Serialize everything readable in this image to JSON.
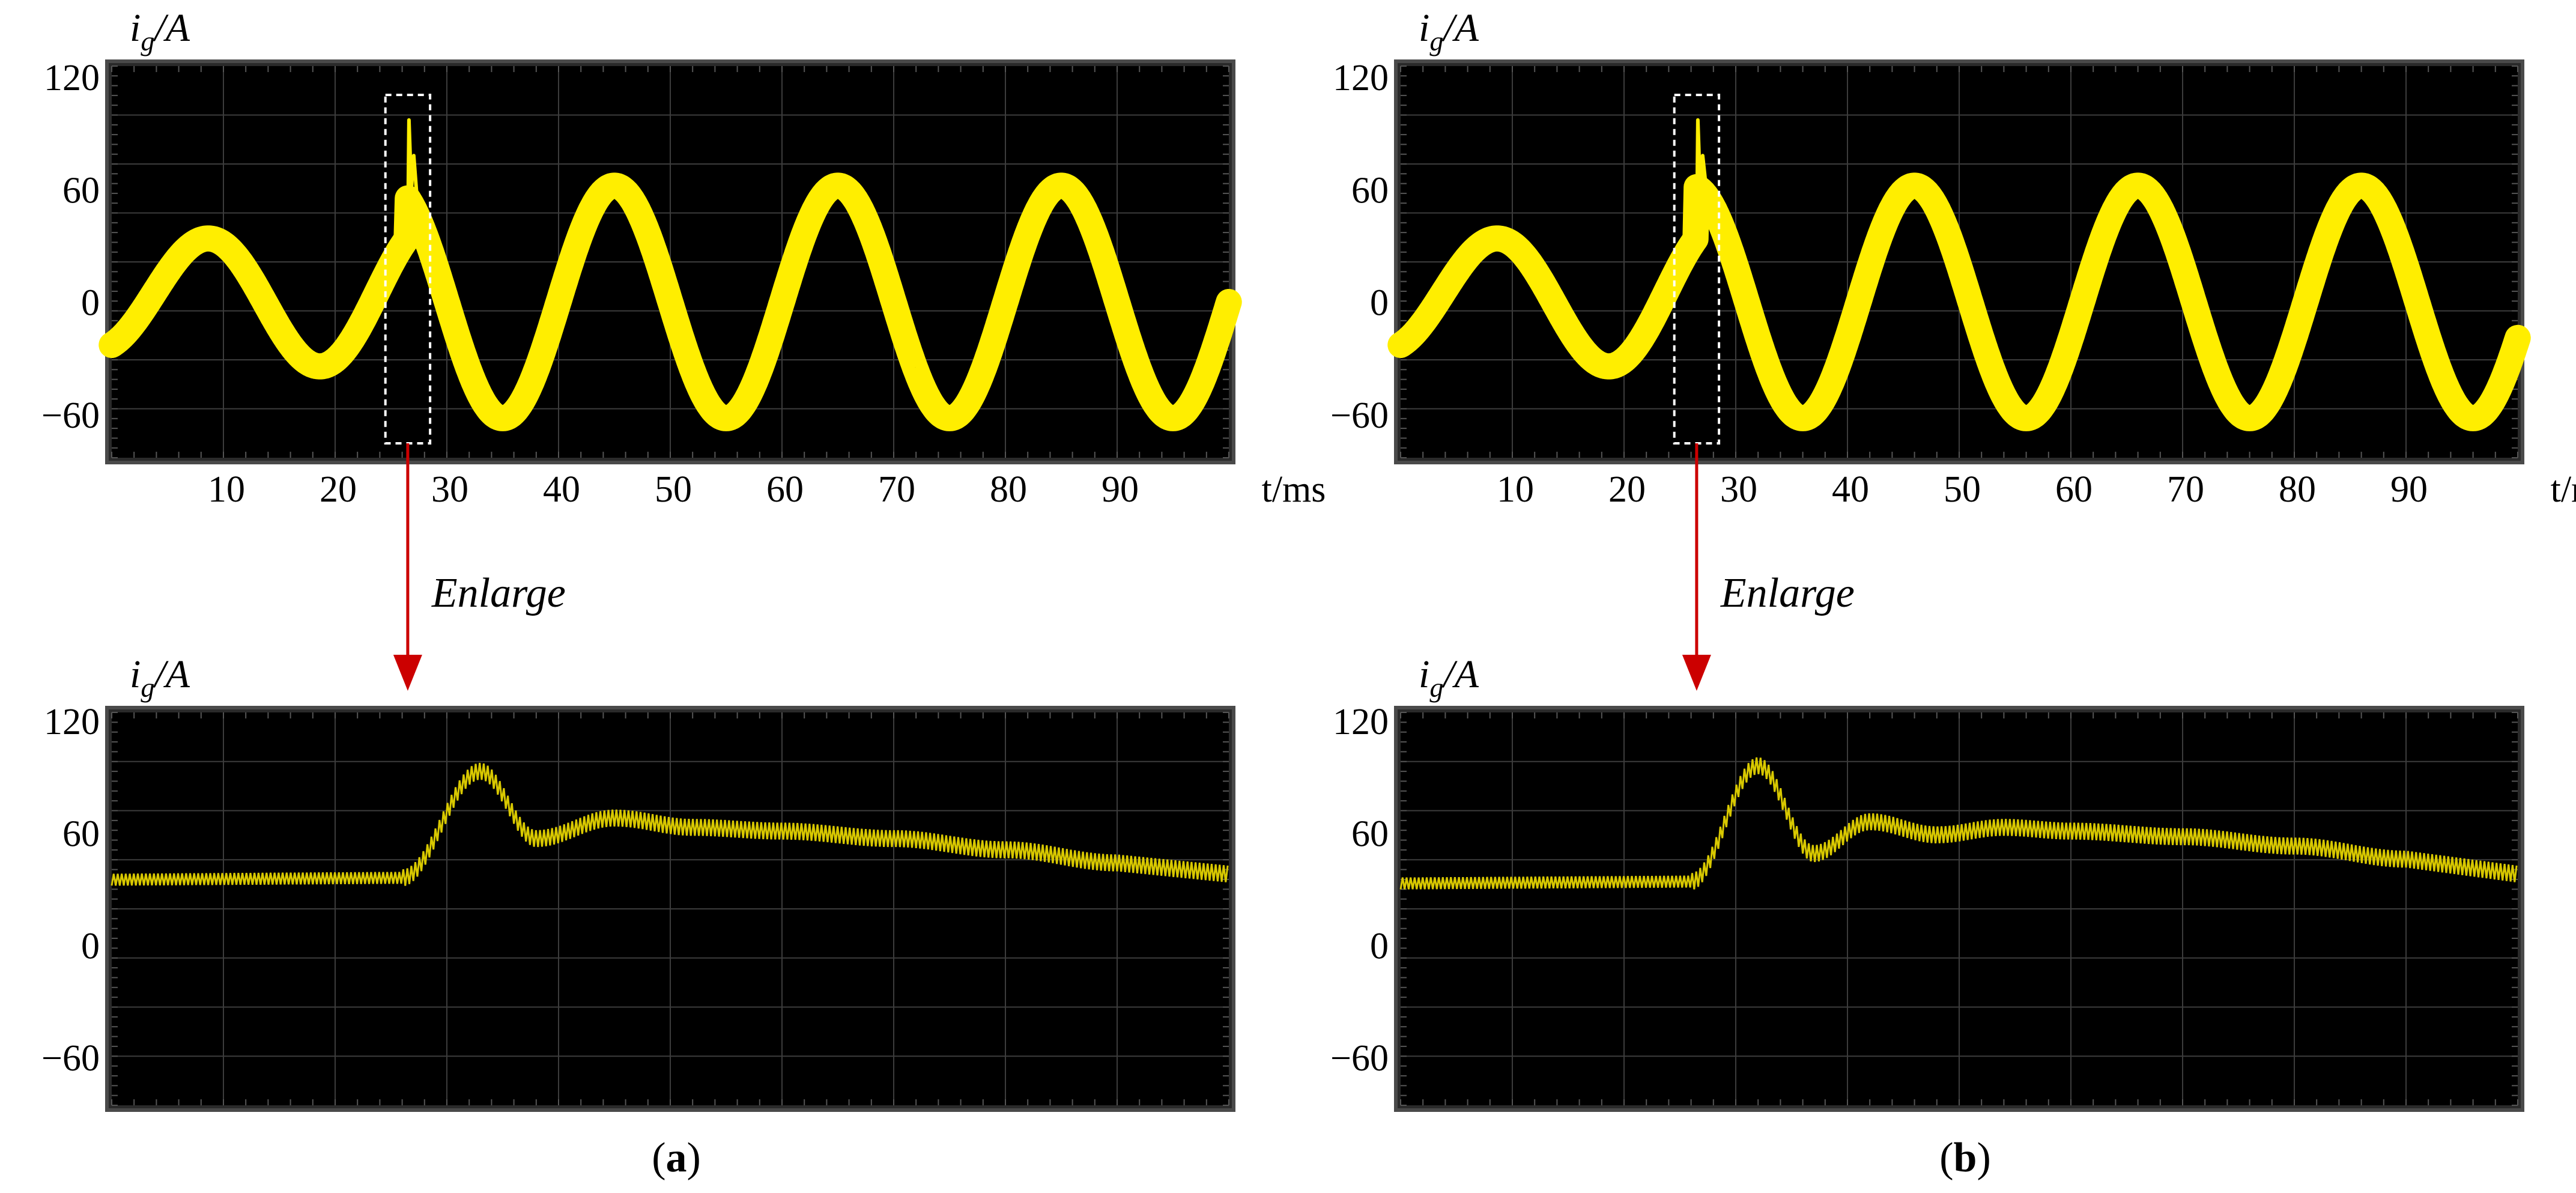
{
  "colors": {
    "screen": "#000000",
    "grid": "#3c3c3c",
    "frame": "#4a4a4a",
    "trace": "#ffee00",
    "trace_zoom": "#d8c800",
    "arrow": "#cc0000",
    "box": "#ffffff"
  },
  "enlarge_label": "Enlarge",
  "chart_data": [
    {
      "id": "a-top",
      "panel": "a",
      "type": "line",
      "ylabel_main": "i",
      "ylabel_sub": "g",
      "ylabel_unit": "/A",
      "xlabel": "t/ms",
      "yticks": [
        "120",
        "60",
        "0",
        "−60"
      ],
      "xticks": [
        "10",
        "20",
        "30",
        "40",
        "50",
        "60",
        "70",
        "80",
        "90"
      ],
      "xlim": [
        0,
        100
      ],
      "ylim": [
        -90,
        125
      ],
      "series": [
        {
          "name": "i_g",
          "transient_ms": 26.5,
          "pre": {
            "amplitude": 28,
            "peak_ms": 8.5,
            "period_ms": 20,
            "drift_per_ms": 0.45
          },
          "post": {
            "amplitude": 62,
            "peak_ms": 45,
            "period_ms": 20
          },
          "spike_peak": 97,
          "band_width": 12
        }
      ],
      "zoom_box_ms": [
        24.5,
        28.5
      ]
    },
    {
      "id": "b-top",
      "panel": "b",
      "type": "line",
      "ylabel_main": "i",
      "ylabel_sub": "g",
      "ylabel_unit": "/A",
      "xlabel": "t/ms",
      "yticks": [
        "120",
        "60",
        "0",
        "−60"
      ],
      "xticks": [
        "10",
        "20",
        "30",
        "40",
        "50",
        "60",
        "70",
        "80",
        "90"
      ],
      "xlim": [
        0,
        100
      ],
      "ylim": [
        -90,
        125
      ],
      "series": [
        {
          "name": "i_g",
          "transient_ms": 26.5,
          "pre": {
            "amplitude": 28,
            "peak_ms": 8.5,
            "period_ms": 20,
            "drift_per_ms": 0.45
          },
          "post": {
            "amplitude": 62,
            "peak_ms": 46,
            "period_ms": 20
          },
          "spike_peak": 97,
          "band_width": 12
        }
      ],
      "zoom_box_ms": [
        24.5,
        28.5
      ]
    },
    {
      "id": "a-bottom",
      "panel": "a",
      "type": "line",
      "ylabel_main": "i",
      "ylabel_sub": "g",
      "ylabel_unit": "/A",
      "yticks": [
        "120",
        "60",
        "0",
        "−60"
      ],
      "xlim": [
        0,
        100
      ],
      "ylim": [
        -90,
        125
      ],
      "series": [
        {
          "name": "i_g (enlarged)",
          "ripple": 4.5,
          "points": [
            [
              0,
              35
            ],
            [
              26,
              36
            ],
            [
              33,
              93
            ],
            [
              38,
              57
            ],
            [
              45,
              68
            ],
            [
              52,
              63
            ],
            [
              60,
              61
            ],
            [
              70,
              57
            ],
            [
              80,
              51
            ],
            [
              90,
              44
            ],
            [
              100,
              38
            ]
          ]
        }
      ]
    },
    {
      "id": "b-bottom",
      "panel": "b",
      "type": "line",
      "ylabel_main": "i",
      "ylabel_sub": "g",
      "ylabel_unit": "/A",
      "yticks": [
        "120",
        "60",
        "0",
        "−60"
      ],
      "xlim": [
        0,
        100
      ],
      "ylim": [
        -90,
        125
      ],
      "series": [
        {
          "name": "i_g (enlarged)",
          "ripple": 4.5,
          "points": [
            [
              0,
              33
            ],
            [
              26,
              34
            ],
            [
              32,
              96
            ],
            [
              37,
              49
            ],
            [
              42,
              66
            ],
            [
              48,
              59
            ],
            [
              54,
              63
            ],
            [
              60,
              61
            ],
            [
              70,
              58
            ],
            [
              80,
              53
            ],
            [
              90,
              46
            ],
            [
              100,
              38
            ]
          ]
        }
      ]
    }
  ],
  "captions": [
    {
      "panel": "a",
      "letter": "a"
    },
    {
      "panel": "b",
      "letter": "b"
    }
  ]
}
